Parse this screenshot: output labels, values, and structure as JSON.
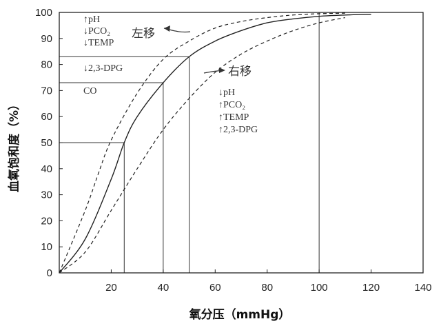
{
  "chart_data": {
    "type": "line",
    "title": "",
    "xlabel": "氧分压（mmHg）",
    "ylabel": "血氧饱和度（%）",
    "xlim": [
      0,
      140
    ],
    "ylim": [
      0,
      100
    ],
    "x_ticks": [
      "20",
      "40",
      "60",
      "80",
      "100",
      "120",
      "140"
    ],
    "y_ticks": [
      "0",
      "10",
      "20",
      "30",
      "40",
      "50",
      "60",
      "70",
      "80",
      "90",
      "100"
    ],
    "grid": false,
    "series": [
      {
        "style": "solid",
        "x": [
          0,
          10,
          20,
          25,
          30,
          40,
          50,
          60,
          70,
          80,
          90,
          100,
          110,
          120
        ],
        "y": [
          0,
          13,
          36,
          50,
          60,
          73,
          83,
          89,
          93,
          96,
          97.5,
          98.5,
          99,
          99.3
        ]
      },
      {
        "style": "dashed",
        "x": [
          0,
          10,
          15,
          20,
          30,
          40,
          50,
          60,
          70,
          80,
          90,
          100,
          110
        ],
        "y": [
          0,
          24,
          38,
          51,
          69,
          82,
          89,
          94,
          96.5,
          98,
          99,
          99.5,
          99.7
        ]
      },
      {
        "style": "dashed",
        "x": [
          0,
          10,
          20,
          30,
          40,
          50,
          60,
          70,
          80,
          90,
          100,
          110
        ],
        "y": [
          0,
          8,
          24,
          40,
          55,
          67,
          77,
          84,
          89,
          93,
          96,
          98
        ]
      }
    ],
    "reference_lines": [
      {
        "x": 25,
        "y": 50
      },
      {
        "x": 40,
        "y": 73
      },
      {
        "x": 50,
        "y": 83
      },
      {
        "x": 100,
        "y": 100
      }
    ],
    "annotations": {
      "left_shift": {
        "label": "左移",
        "factors": [
          "↑pH",
          "↓PCO₂",
          "↓TEMP",
          "↓2,3-DPG",
          "CO"
        ]
      },
      "right_shift": {
        "label": "右移",
        "factors": [
          "↓pH",
          "↑PCO₂",
          "↑TEMP",
          "↑2,3-DPG"
        ]
      }
    }
  }
}
